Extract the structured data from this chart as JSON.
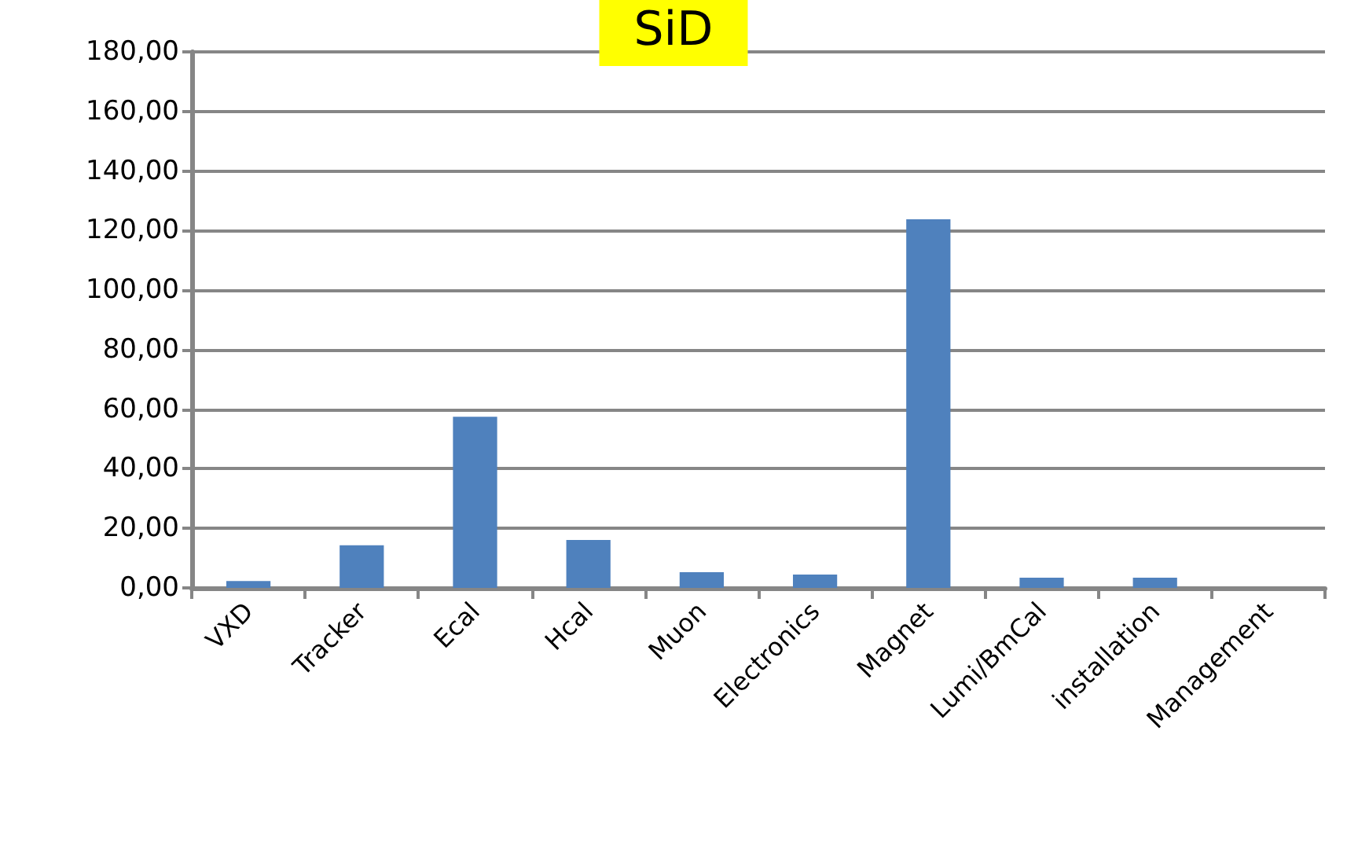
{
  "chart_data": {
    "type": "bar",
    "title": "SiD",
    "categories": [
      "VXD",
      "Tracker",
      "Ecal",
      "Hcal",
      "Muon",
      "Electronics",
      "Magnet",
      "Lumi/BmCal",
      "installation",
      "Management"
    ],
    "values": [
      2.3,
      14.3,
      57.5,
      16.1,
      5.3,
      4.5,
      123.8,
      3.4,
      3.4,
      0
    ],
    "color": "#4f81bd",
    "ylim": [
      0,
      180
    ],
    "yticks": [
      {
        "value": 0,
        "label": "0,00"
      },
      {
        "value": 20,
        "label": "20,00"
      },
      {
        "value": 40,
        "label": "40,00"
      },
      {
        "value": 60,
        "label": "60,00"
      },
      {
        "value": 80,
        "label": "80,00"
      },
      {
        "value": 100,
        "label": "100,00"
      },
      {
        "value": 120,
        "label": "120,00"
      },
      {
        "value": 140,
        "label": "140,00"
      },
      {
        "value": 160,
        "label": "160,00"
      },
      {
        "value": 180,
        "label": "180,00"
      }
    ],
    "grid": "y"
  }
}
